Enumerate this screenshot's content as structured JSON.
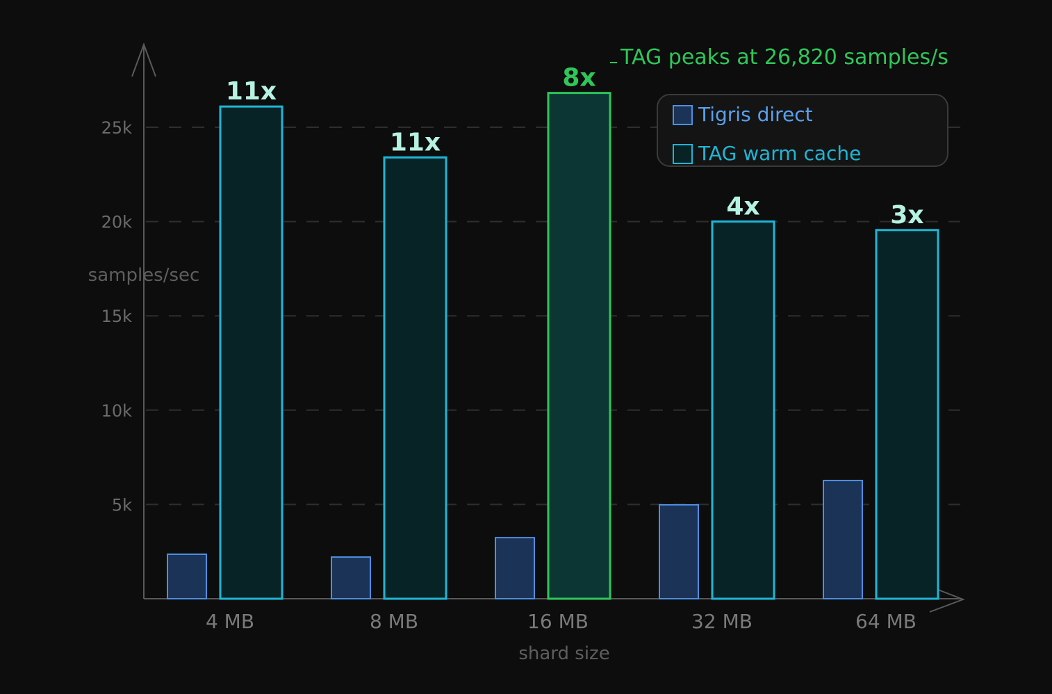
{
  "chart_data": {
    "type": "bar",
    "title": "",
    "xlabel": "shard size",
    "ylabel": "samples/sec",
    "ylim": [
      0,
      28000
    ],
    "yticks": [
      {
        "value": 5000,
        "label": "5k"
      },
      {
        "value": 10000,
        "label": "10k"
      },
      {
        "value": 15000,
        "label": "15k"
      },
      {
        "value": 20000,
        "label": "20k"
      },
      {
        "value": 25000,
        "label": "25k"
      }
    ],
    "grid": "horizontal dashed",
    "legend_position": "top-right",
    "categories": [
      "4 MB",
      "8 MB",
      "16 MB",
      "32 MB",
      "64 MB"
    ],
    "series": [
      {
        "name": "Tigris direct",
        "values": [
          2360,
          2210,
          3240,
          4980,
          6270
        ],
        "fill": "#1c3358",
        "stroke": "#4d8fe0"
      },
      {
        "name": "TAG warm cache",
        "values": [
          26100,
          23400,
          26820,
          20000,
          19550
        ],
        "fill": "#072325",
        "stroke": "#1eb6d6"
      }
    ],
    "speedup_labels": [
      "11x",
      "11x",
      "8x",
      "4x",
      "3x"
    ],
    "highlight_index": 2,
    "annotations": [
      {
        "text": "TAG peaks at 26,820 samples/s",
        "target": "16 MB",
        "color": "#2fc65a"
      }
    ]
  },
  "colors": {
    "background": "#0d0d0d",
    "axis": "#5a5a5a",
    "grid": "#2e2e2e",
    "tigris_fill": "#1c3358",
    "tigris_stroke": "#4d8fe0",
    "tag_fill": "#072325",
    "tag_stroke": "#1eb6d6",
    "highlight_fill": "#0b3633",
    "highlight_stroke": "#2fc65a",
    "multiplier_text": "#b6f2e2",
    "highlight_text": "#2fc65a",
    "legend_tigris_text": "#5aa0ea",
    "legend_tag_text": "#1eb6d6"
  },
  "legend": {
    "items": [
      {
        "label": "Tigris direct"
      },
      {
        "label": "TAG warm cache"
      }
    ]
  }
}
